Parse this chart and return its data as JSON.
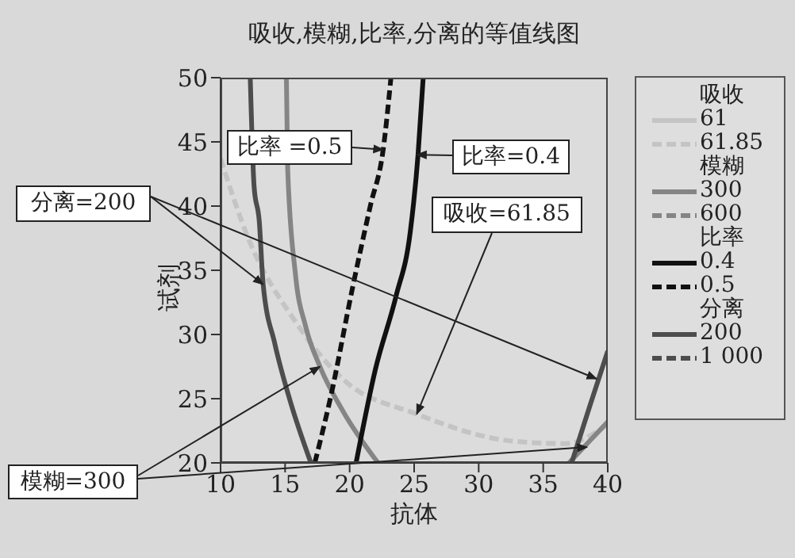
{
  "chart_data": {
    "type": "line",
    "title": "吸收,模糊,比率,分离的等值线图",
    "xlabel": "抗体",
    "ylabel": "试剂",
    "xlim": [
      10,
      40
    ],
    "xticks": [
      10,
      15,
      20,
      25,
      30,
      35,
      40
    ],
    "ylim": [
      20,
      50
    ],
    "yticks": [
      20,
      25,
      30,
      35,
      40,
      45,
      50
    ],
    "grid": false,
    "legend": "right",
    "marker": "none",
    "series": [
      {
        "name": "61",
        "color": "#c4c4c4",
        "line_style": "solid"
      },
      {
        "name": "61.85",
        "color": "#c4c4c4",
        "line_style": "dashed",
        "x": [
          10,
          12.1,
          15.8,
          19.5,
          25.2,
          32.6,
          36.7,
          40
        ],
        "values": [
          43.7,
          37.6,
          31,
          26.5,
          23.8,
          21.7,
          21.5,
          23
        ]
      },
      {
        "name": "300",
        "color": "#858585",
        "line_style": "solid",
        "x": [
          15.1,
          15.2,
          15.8,
          16.6,
          17.7,
          19.5,
          22.2,
          30,
          37,
          38.4,
          40
        ],
        "values": [
          50,
          42.9,
          34.7,
          30.6,
          27.5,
          24,
          20,
          null,
          20,
          21.5,
          23.2
        ]
      },
      {
        "name": "600",
        "color": "#858585",
        "line_style": "dashed"
      },
      {
        "name": "0.4",
        "color": "#111111",
        "line_style": "solid",
        "x": [
          20.5,
          22,
          23.6,
          24.7,
          25.3,
          25.7
        ],
        "values": [
          20,
          27.3,
          33,
          38,
          44,
          50
        ]
      },
      {
        "name": "0.5",
        "color": "#111111",
        "line_style": "dashed",
        "x": [
          17.3,
          18.5,
          20.3,
          21.6,
          22.6,
          23.2
        ],
        "values": [
          20,
          25,
          34,
          40,
          44.4,
          50
        ]
      },
      {
        "name": "200",
        "color": "#4d4d4d",
        "line_style": "solid",
        "x": [
          12.3,
          12.6,
          13,
          13.3,
          14.2,
          15.4,
          17,
          27,
          37.2,
          38.6,
          40
        ],
        "values": [
          50,
          41.5,
          38.8,
          33.9,
          29.3,
          24.8,
          20,
          null,
          20,
          24.4,
          28.7
        ]
      },
      {
        "name": "1 000",
        "color": "#4d4d4d",
        "line_style": "dashed"
      }
    ],
    "annotations": [
      {
        "text": "比率 =0.5",
        "x": 22.6,
        "y": 44.4
      },
      {
        "text": "比率=0.4",
        "x": 25.2,
        "y": 44
      },
      {
        "text": "吸收=61.85",
        "x": 25.2,
        "y": 23.8
      },
      {
        "text": "分离=200",
        "x": 13.3,
        "y": 33.9
      },
      {
        "text": "模糊=300",
        "x": 17.7,
        "y": 27.5
      },
      "吸收",
      "模糊",
      "比率",
      "分离"
    ]
  }
}
